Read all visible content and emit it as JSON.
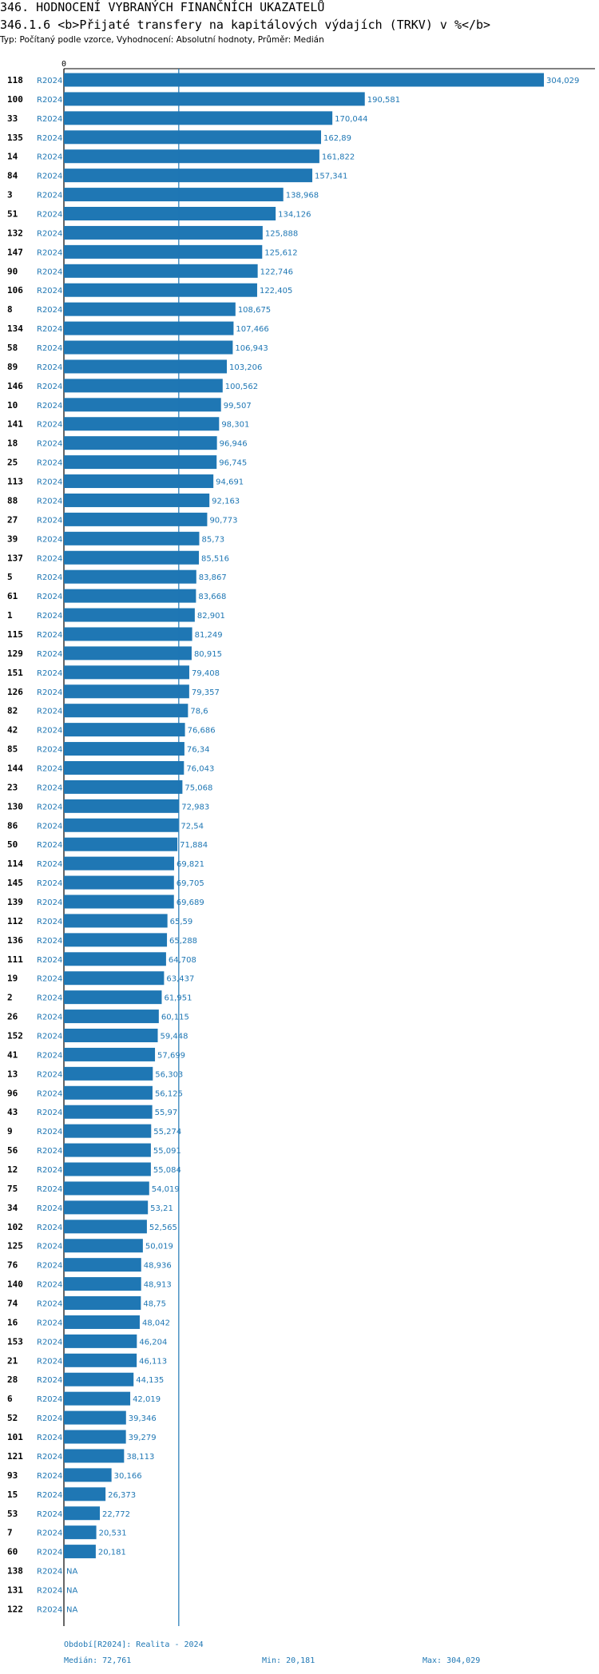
{
  "header": {
    "title": "346. HODNOCENÍ VYBRANÝCH FINANČNÍCH UKAZATELŮ",
    "subtitle": "346.1.6 <b>Přijaté transfery na kapitálových výdajích (TRKV) v %</b>",
    "type_line": "Typ: Počítaný podle vzorce, Vyhodnocení: Absolutní hodnoty, Průměr: Medián"
  },
  "colors": {
    "bar": "#1f77b4",
    "text": "#1f77b4",
    "label": "#000000"
  },
  "chart_data": {
    "type": "bar",
    "orientation": "horizontal",
    "axis_zero_label": "0",
    "period_tag": "R2024",
    "na_label": "NA",
    "median": 72.761,
    "xlim": [
      0,
      304.029
    ],
    "categories": [
      "118",
      "100",
      "33",
      "135",
      "14",
      "84",
      "3",
      "51",
      "132",
      "147",
      "90",
      "106",
      "8",
      "134",
      "58",
      "89",
      "146",
      "10",
      "141",
      "18",
      "25",
      "113",
      "88",
      "27",
      "39",
      "137",
      "5",
      "61",
      "1",
      "115",
      "129",
      "151",
      "126",
      "82",
      "42",
      "85",
      "144",
      "23",
      "130",
      "86",
      "50",
      "114",
      "145",
      "139",
      "112",
      "136",
      "111",
      "19",
      "2",
      "26",
      "152",
      "41",
      "13",
      "96",
      "43",
      "9",
      "56",
      "12",
      "75",
      "34",
      "102",
      "125",
      "76",
      "140",
      "74",
      "16",
      "153",
      "21",
      "28",
      "6",
      "52",
      "101",
      "121",
      "93",
      "15",
      "53",
      "7",
      "60",
      "138",
      "131",
      "122"
    ],
    "values": [
      304.029,
      190.581,
      170.044,
      162.89,
      161.822,
      157.341,
      138.968,
      134.126,
      125.888,
      125.612,
      122.746,
      122.405,
      108.675,
      107.466,
      106.943,
      103.206,
      100.562,
      99.507,
      98.301,
      96.946,
      96.745,
      94.691,
      92.163,
      90.773,
      85.73,
      85.516,
      83.867,
      83.668,
      82.901,
      81.249,
      80.915,
      79.408,
      79.357,
      78.6,
      76.686,
      76.34,
      76.043,
      75.068,
      72.983,
      72.54,
      71.884,
      69.821,
      69.705,
      69.689,
      65.59,
      65.288,
      64.708,
      63.437,
      61.951,
      60.115,
      59.448,
      57.699,
      56.303,
      56.125,
      55.97,
      55.274,
      55.091,
      55.084,
      54.019,
      53.21,
      52.565,
      50.019,
      48.936,
      48.913,
      48.75,
      48.042,
      46.204,
      46.113,
      44.135,
      42.019,
      39.346,
      39.279,
      38.113,
      30.166,
      26.373,
      22.772,
      20.531,
      20.181,
      null,
      null,
      null
    ],
    "value_labels": [
      "304,029",
      "190,581",
      "170,044",
      "162,89",
      "161,822",
      "157,341",
      "138,968",
      "134,126",
      "125,888",
      "125,612",
      "122,746",
      "122,405",
      "108,675",
      "107,466",
      "106,943",
      "103,206",
      "100,562",
      "99,507",
      "98,301",
      "96,946",
      "96,745",
      "94,691",
      "92,163",
      "90,773",
      "85,73",
      "85,516",
      "83,867",
      "83,668",
      "82,901",
      "81,249",
      "80,915",
      "79,408",
      "79,357",
      "78,6",
      "76,686",
      "76,34",
      "76,043",
      "75,068",
      "72,983",
      "72,54",
      "71,884",
      "69,821",
      "69,705",
      "69,689",
      "65,59",
      "65,288",
      "64,708",
      "63,437",
      "61,951",
      "60,115",
      "59,448",
      "57,699",
      "56,303",
      "56,125",
      "55,97",
      "55,274",
      "55,091",
      "55,084",
      "54,019",
      "53,21",
      "52,565",
      "50,019",
      "48,936",
      "48,913",
      "48,75",
      "48,042",
      "46,204",
      "46,113",
      "44,135",
      "42,019",
      "39,346",
      "39,279",
      "38,113",
      "30,166",
      "26,373",
      "22,772",
      "20,531",
      "20,181",
      "NA",
      "NA",
      "NA"
    ]
  },
  "footer": {
    "period": "Období[R2024]: Realita - 2024",
    "median": "Medián: 72,761",
    "min": "Min: 20,181",
    "max": "Max: 304,029"
  }
}
